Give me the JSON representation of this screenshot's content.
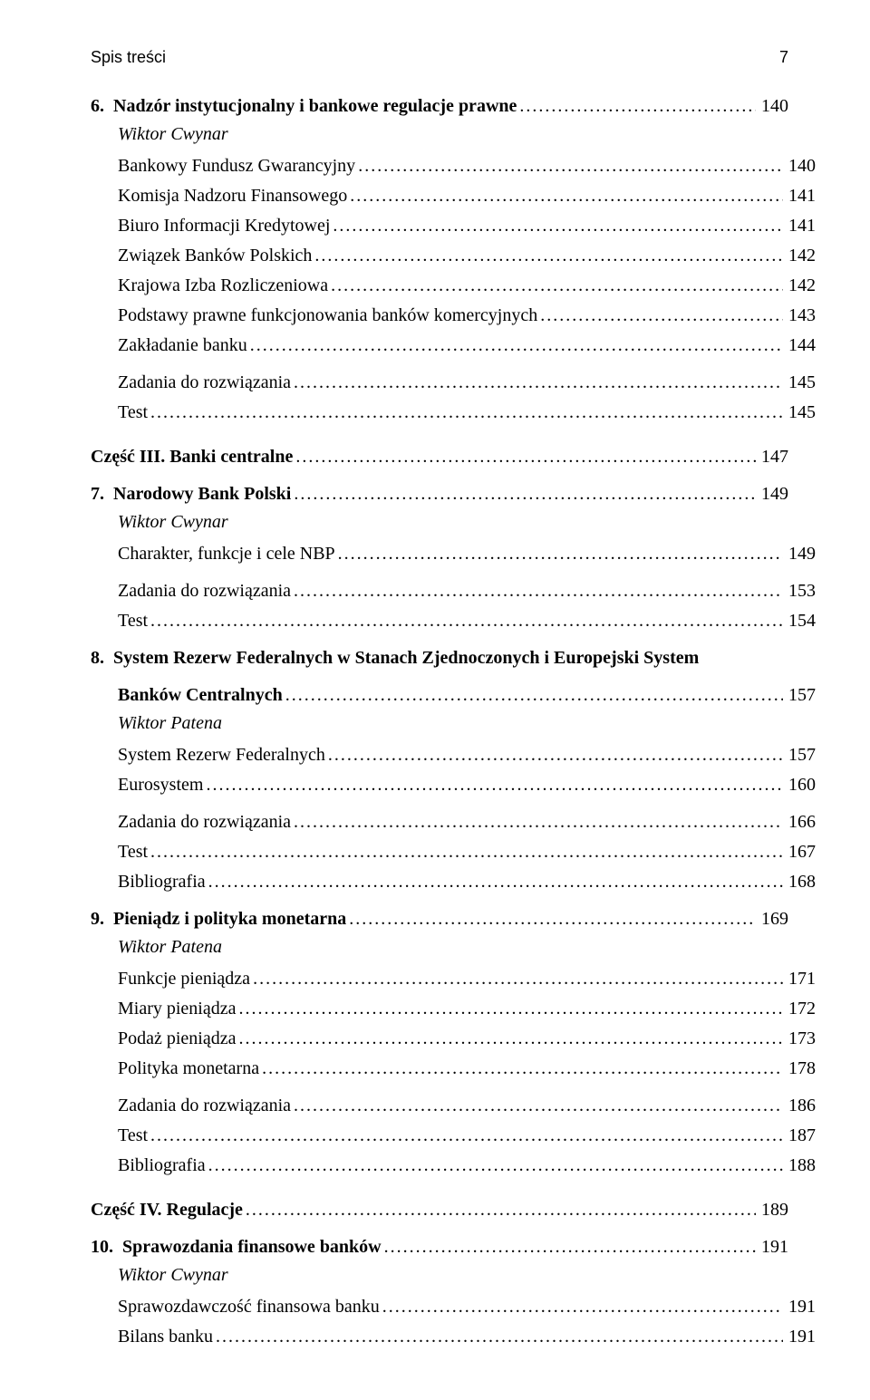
{
  "running_head": {
    "title": "Spis treści",
    "page": "7"
  },
  "leader_dots": ".............................................................................................................................................................................",
  "entries": [
    {
      "kind": "chapter",
      "text": "6. Nadzór instytucjonalny i bankowe regulacje prawne",
      "page": "140"
    },
    {
      "kind": "author",
      "text": "Wiktor Cwynar"
    },
    {
      "kind": "sub",
      "text": "Bankowy Fundusz Gwarancyjny",
      "page": "140"
    },
    {
      "kind": "sub",
      "text": "Komisja Nadzoru Finansowego",
      "page": "141"
    },
    {
      "kind": "sub",
      "text": "Biuro Informacji Kredytowej",
      "page": "141"
    },
    {
      "kind": "sub",
      "text": "Związek Banków Polskich",
      "page": "142"
    },
    {
      "kind": "sub",
      "text": "Krajowa Izba Rozliczeniowa",
      "page": "142"
    },
    {
      "kind": "sub",
      "text": "Podstawy prawne funkcjonowania banków komercyjnych",
      "page": "143"
    },
    {
      "kind": "sub",
      "text": "Zakładanie banku",
      "page": "144"
    },
    {
      "kind": "gap-s"
    },
    {
      "kind": "sub",
      "text": "Zadania do rozwiązania",
      "page": "145"
    },
    {
      "kind": "sub",
      "text": "Test",
      "page": "145"
    },
    {
      "kind": "part",
      "text": "Część III. Banki centralne",
      "page": "147"
    },
    {
      "kind": "chapter",
      "text": "7. Narodowy Bank Polski",
      "page": "149"
    },
    {
      "kind": "author",
      "text": "Wiktor Cwynar"
    },
    {
      "kind": "sub",
      "text": "Charakter, funkcje i cele NBP",
      "page": "149"
    },
    {
      "kind": "gap-s"
    },
    {
      "kind": "sub",
      "text": "Zadania do rozwiązania",
      "page": "153"
    },
    {
      "kind": "sub",
      "text": "Test",
      "page": "154"
    },
    {
      "kind": "chapter",
      "text": "8. System Rezerw Federalnych w Stanach Zjednoczonych i Europejski System",
      "page": ""
    },
    {
      "kind": "chapter-cont",
      "text": "Banków Centralnych",
      "page": "157"
    },
    {
      "kind": "author",
      "text": "Wiktor Patena"
    },
    {
      "kind": "sub",
      "text": "System Rezerw Federalnych",
      "page": "157"
    },
    {
      "kind": "sub",
      "text": "Eurosystem",
      "page": "160"
    },
    {
      "kind": "gap-s"
    },
    {
      "kind": "sub",
      "text": "Zadania do rozwiązania",
      "page": "166"
    },
    {
      "kind": "sub",
      "text": "Test",
      "page": "167"
    },
    {
      "kind": "sub",
      "text": "Bibliografia",
      "page": "168"
    },
    {
      "kind": "chapter",
      "text": "9. Pieniądz i polityka monetarna",
      "page": "169"
    },
    {
      "kind": "author",
      "text": "Wiktor Patena"
    },
    {
      "kind": "sub",
      "text": "Funkcje pieniądza",
      "page": "171"
    },
    {
      "kind": "sub",
      "text": "Miary pieniądza",
      "page": "172"
    },
    {
      "kind": "sub",
      "text": "Podaż pieniądza",
      "page": "173"
    },
    {
      "kind": "sub",
      "text": "Polityka monetarna",
      "page": "178"
    },
    {
      "kind": "gap-s"
    },
    {
      "kind": "sub",
      "text": "Zadania do rozwiązania",
      "page": "186"
    },
    {
      "kind": "sub",
      "text": "Test",
      "page": "187"
    },
    {
      "kind": "sub",
      "text": "Bibliografia",
      "page": "188"
    },
    {
      "kind": "part",
      "text": "Część IV. Regulacje",
      "page": "189"
    },
    {
      "kind": "chapter",
      "text": "10. Sprawozdania finansowe banków",
      "page": "191"
    },
    {
      "kind": "author",
      "text": "Wiktor Cwynar"
    },
    {
      "kind": "sub",
      "text": "Sprawozdawczość finansowa banku",
      "page": "191"
    },
    {
      "kind": "sub",
      "text": "Bilans banku",
      "page": "191"
    }
  ]
}
